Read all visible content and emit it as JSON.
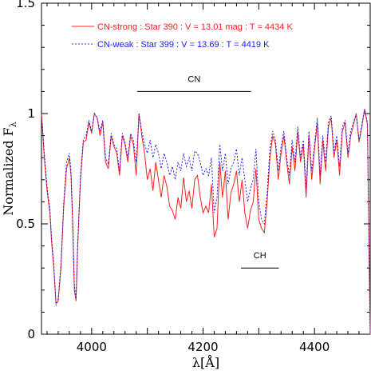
{
  "chart_data": {
    "type": "line",
    "xlabel": "λ[Å]",
    "ylabel": "Normalized F",
    "ylabel_sub": "λ",
    "xlim": [
      3910,
      4500
    ],
    "ylim": [
      0,
      1.5
    ],
    "x_ticks": [
      4000,
      4200,
      4400
    ],
    "y_ticks": [
      0,
      0.5,
      1,
      1.5
    ],
    "x_tick_labels": [
      "4000",
      "4200",
      "4400"
    ],
    "y_tick_labels": [
      "0",
      "0.5",
      "1",
      "1.5"
    ],
    "grid": false,
    "legend_placement": "top-left",
    "series": [
      {
        "name": "CN-strong : Star 390 : V = 13.01 mag : T = 4434 K",
        "color": "#ff2020",
        "style": "solid",
        "x": [
          3910,
          3915,
          3920,
          3925,
          3928,
          3932,
          3936,
          3940,
          3945,
          3950,
          3955,
          3960,
          3963,
          3966,
          3969,
          3972,
          3975,
          3980,
          3985,
          3990,
          3995,
          4000,
          4005,
          4010,
          4015,
          4020,
          4025,
          4030,
          4035,
          4040,
          4045,
          4050,
          4055,
          4060,
          4065,
          4070,
          4075,
          4080,
          4085,
          4090,
          4095,
          4100,
          4105,
          4110,
          4115,
          4120,
          4125,
          4130,
          4135,
          4140,
          4145,
          4150,
          4155,
          4160,
          4165,
          4170,
          4175,
          4180,
          4185,
          4190,
          4195,
          4200,
          4205,
          4210,
          4215,
          4220,
          4225,
          4230,
          4235,
          4240,
          4245,
          4250,
          4255,
          4260,
          4265,
          4270,
          4275,
          4280,
          4285,
          4290,
          4295,
          4300,
          4305,
          4310,
          4315,
          4320,
          4325,
          4330,
          4335,
          4340,
          4345,
          4350,
          4355,
          4360,
          4365,
          4370,
          4375,
          4380,
          4385,
          4390,
          4395,
          4400,
          4405,
          4410,
          4415,
          4420,
          4425,
          4430,
          4435,
          4440,
          4445,
          4450,
          4455,
          4460,
          4465,
          4470,
          4475,
          4480,
          4485,
          4490,
          4495,
          4500
        ],
        "values": [
          1.0,
          0.8,
          0.65,
          0.55,
          0.42,
          0.3,
          0.14,
          0.15,
          0.3,
          0.58,
          0.75,
          0.8,
          0.72,
          0.5,
          0.2,
          0.15,
          0.4,
          0.7,
          0.87,
          0.88,
          0.96,
          0.91,
          1.0,
          0.98,
          0.9,
          0.96,
          0.78,
          0.75,
          0.9,
          0.85,
          0.82,
          0.72,
          0.9,
          0.86,
          0.78,
          0.9,
          0.86,
          0.72,
          1.0,
          0.9,
          0.82,
          0.7,
          0.75,
          0.65,
          0.78,
          0.7,
          0.62,
          0.72,
          0.67,
          0.58,
          0.56,
          0.52,
          0.62,
          0.57,
          0.71,
          0.6,
          0.65,
          0.57,
          0.7,
          0.72,
          0.62,
          0.55,
          0.58,
          0.55,
          0.68,
          0.44,
          0.48,
          0.78,
          0.62,
          0.74,
          0.52,
          0.64,
          0.68,
          0.74,
          0.6,
          0.7,
          0.55,
          0.48,
          0.56,
          0.6,
          0.75,
          0.52,
          0.48,
          0.46,
          0.6,
          0.8,
          0.9,
          0.86,
          0.7,
          0.82,
          0.9,
          0.78,
          0.68,
          0.85,
          0.74,
          0.92,
          0.78,
          0.86,
          0.62,
          0.9,
          0.7,
          0.84,
          0.96,
          0.68,
          0.88,
          0.74,
          0.94,
          0.98,
          0.8,
          0.88,
          0.72,
          0.92,
          0.96,
          0.8,
          0.9,
          0.95,
          1.0,
          0.87,
          0.94,
          1.02,
          0.95,
          0.0
        ]
      },
      {
        "name": "CN-weak : Star 399 : V = 13.69 : T = 4419 K",
        "color": "#2020ff",
        "style": "dotted",
        "x": [
          3910,
          3915,
          3920,
          3925,
          3928,
          3932,
          3936,
          3940,
          3945,
          3950,
          3955,
          3960,
          3963,
          3966,
          3969,
          3972,
          3975,
          3980,
          3985,
          3990,
          3995,
          4000,
          4005,
          4010,
          4015,
          4020,
          4025,
          4030,
          4035,
          4040,
          4045,
          4050,
          4055,
          4060,
          4065,
          4070,
          4075,
          4080,
          4085,
          4090,
          4095,
          4100,
          4105,
          4110,
          4115,
          4120,
          4125,
          4130,
          4135,
          4140,
          4145,
          4150,
          4155,
          4160,
          4165,
          4170,
          4175,
          4180,
          4185,
          4190,
          4195,
          4200,
          4205,
          4210,
          4215,
          4220,
          4225,
          4230,
          4235,
          4240,
          4245,
          4250,
          4255,
          4260,
          4265,
          4270,
          4275,
          4280,
          4285,
          4290,
          4295,
          4300,
          4305,
          4310,
          4315,
          4320,
          4325,
          4330,
          4335,
          4340,
          4345,
          4350,
          4355,
          4360,
          4365,
          4370,
          4375,
          4380,
          4385,
          4390,
          4395,
          4400,
          4405,
          4410,
          4415,
          4420,
          4425,
          4430,
          4435,
          4440,
          4445,
          4450,
          4455,
          4460,
          4465,
          4470,
          4475,
          4480,
          4485,
          4490,
          4495,
          4500
        ],
        "values": [
          1.0,
          0.82,
          0.67,
          0.57,
          0.44,
          0.32,
          0.13,
          0.16,
          0.32,
          0.6,
          0.78,
          0.82,
          0.74,
          0.52,
          0.22,
          0.16,
          0.42,
          0.72,
          0.88,
          0.9,
          0.97,
          0.92,
          1.0,
          0.98,
          0.92,
          0.97,
          0.8,
          0.77,
          0.91,
          0.86,
          0.84,
          0.74,
          0.91,
          0.87,
          0.8,
          0.91,
          0.88,
          0.78,
          1.0,
          0.92,
          0.86,
          0.82,
          0.88,
          0.8,
          0.86,
          0.82,
          0.75,
          0.82,
          0.78,
          0.72,
          0.76,
          0.7,
          0.78,
          0.74,
          0.82,
          0.76,
          0.8,
          0.74,
          0.83,
          0.82,
          0.78,
          0.72,
          0.75,
          0.72,
          0.8,
          0.55,
          0.62,
          0.86,
          0.74,
          0.82,
          0.68,
          0.75,
          0.78,
          0.84,
          0.72,
          0.8,
          0.7,
          0.6,
          0.66,
          0.7,
          0.84,
          0.6,
          0.52,
          0.5,
          0.64,
          0.84,
          0.92,
          0.88,
          0.74,
          0.85,
          0.92,
          0.8,
          0.72,
          0.88,
          0.78,
          0.94,
          0.8,
          0.88,
          0.66,
          0.92,
          0.74,
          0.86,
          0.98,
          0.72,
          0.9,
          0.78,
          0.96,
          0.99,
          0.82,
          0.9,
          0.76,
          0.94,
          0.97,
          0.82,
          0.92,
          0.96,
          1.0,
          0.88,
          0.95,
          1.02,
          0.96,
          0.0
        ]
      }
    ],
    "annotations": [
      {
        "text": "CN",
        "x_start": 4082,
        "x_end": 4286,
        "y": 1.1
      },
      {
        "text": "CH",
        "x_start": 4268,
        "x_end": 4336,
        "y": 0.3
      }
    ]
  }
}
